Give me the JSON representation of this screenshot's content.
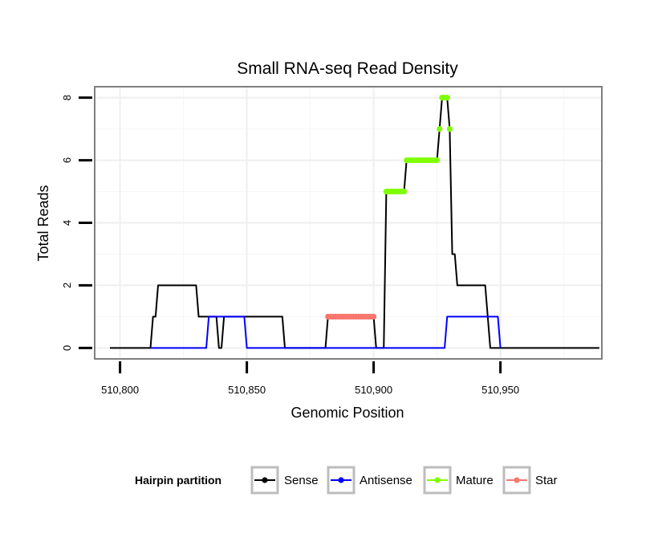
{
  "chart_data": {
    "type": "line",
    "title": "Small RNA-seq Read Density",
    "xlabel": "Genomic Position",
    "ylabel": "Total Reads",
    "xlim": [
      510790,
      510990
    ],
    "ylim": [
      -0.35,
      8.35
    ],
    "x_ticks": [
      510800,
      510850,
      510900,
      510950
    ],
    "x_tick_labels": [
      "510,800",
      "510,850",
      "510,900",
      "510,950"
    ],
    "y_ticks": [
      0,
      2,
      4,
      6,
      8
    ],
    "y_tick_labels": [
      "0",
      "2",
      "4",
      "6",
      "8"
    ],
    "grid": true,
    "legend": {
      "title": "Hairpin partition",
      "position": "bottom",
      "entries": [
        "Sense",
        "Antisense",
        "Mature",
        "Star"
      ]
    },
    "series": [
      {
        "name": "Sense",
        "color": "#000000",
        "style": "line",
        "points": [
          [
            510796,
            0
          ],
          [
            510812,
            0
          ],
          [
            510813,
            1
          ],
          [
            510814,
            1
          ],
          [
            510815,
            2
          ],
          [
            510830,
            2
          ],
          [
            510831,
            1
          ],
          [
            510838,
            1
          ],
          [
            510839,
            0
          ],
          [
            510840,
            0
          ],
          [
            510841,
            1
          ],
          [
            510864,
            1
          ],
          [
            510865,
            0
          ],
          [
            510881,
            0
          ],
          [
            510882,
            1
          ],
          [
            510900,
            1
          ],
          [
            510901,
            0
          ],
          [
            510904,
            0
          ],
          [
            510905,
            5
          ],
          [
            510912,
            5
          ],
          [
            510913,
            6
          ],
          [
            510925,
            6
          ],
          [
            510926,
            7
          ],
          [
            510927,
            8
          ],
          [
            510929,
            8
          ],
          [
            510930,
            7
          ],
          [
            510931,
            3
          ],
          [
            510932,
            3
          ],
          [
            510933,
            2
          ],
          [
            510944,
            2
          ],
          [
            510945,
            1
          ],
          [
            510946,
            0
          ],
          [
            510989,
            0
          ]
        ]
      },
      {
        "name": "Antisense",
        "color": "#0000ff",
        "style": "line",
        "points": [
          [
            510812,
            0
          ],
          [
            510834,
            0
          ],
          [
            510835,
            1
          ],
          [
            510849,
            1
          ],
          [
            510850,
            0
          ],
          [
            510928,
            0
          ],
          [
            510929,
            1
          ],
          [
            510949,
            1
          ],
          [
            510950,
            0
          ]
        ]
      },
      {
        "name": "Mature",
        "color": "#7fff00",
        "style": "points",
        "points": [
          [
            510905,
            5
          ],
          [
            510906,
            5
          ],
          [
            510907,
            5
          ],
          [
            510908,
            5
          ],
          [
            510909,
            5
          ],
          [
            510910,
            5
          ],
          [
            510911,
            5
          ],
          [
            510912,
            5
          ],
          [
            510913,
            6
          ],
          [
            510914,
            6
          ],
          [
            510915,
            6
          ],
          [
            510916,
            6
          ],
          [
            510917,
            6
          ],
          [
            510918,
            6
          ],
          [
            510919,
            6
          ],
          [
            510920,
            6
          ],
          [
            510921,
            6
          ],
          [
            510922,
            6
          ],
          [
            510923,
            6
          ],
          [
            510924,
            6
          ],
          [
            510925,
            6
          ],
          [
            510926,
            7
          ],
          [
            510927,
            8
          ],
          [
            510928,
            8
          ],
          [
            510929,
            8
          ],
          [
            510930,
            7
          ]
        ]
      },
      {
        "name": "Star",
        "color": "#f8766d",
        "style": "points",
        "points": [
          [
            510882,
            1
          ],
          [
            510883,
            1
          ],
          [
            510884,
            1
          ],
          [
            510885,
            1
          ],
          [
            510886,
            1
          ],
          [
            510887,
            1
          ],
          [
            510888,
            1
          ],
          [
            510889,
            1
          ],
          [
            510890,
            1
          ],
          [
            510891,
            1
          ],
          [
            510892,
            1
          ],
          [
            510893,
            1
          ],
          [
            510894,
            1
          ],
          [
            510895,
            1
          ],
          [
            510896,
            1
          ],
          [
            510897,
            1
          ],
          [
            510898,
            1
          ],
          [
            510899,
            1
          ],
          [
            510900,
            1
          ]
        ]
      }
    ]
  }
}
